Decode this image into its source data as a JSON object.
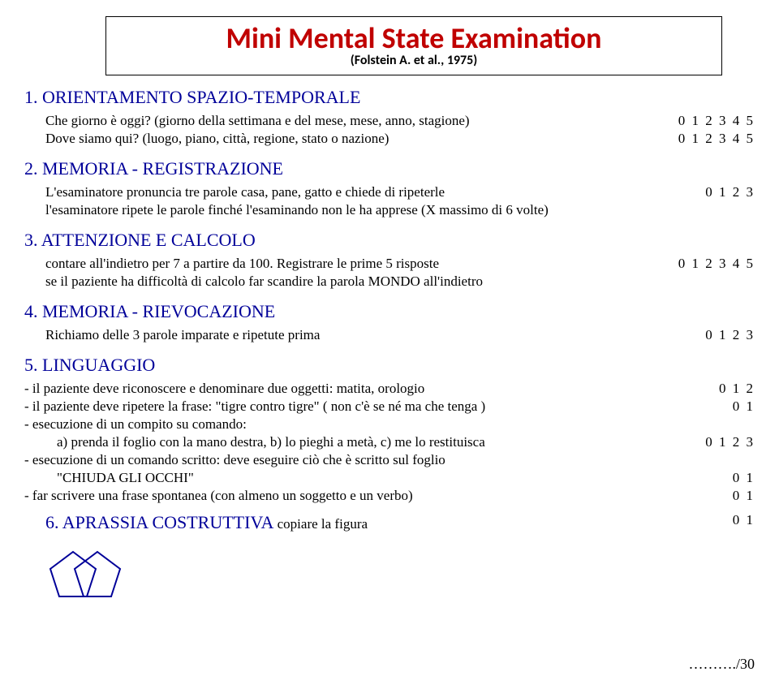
{
  "title": {
    "main": "Mini Mental State Examination",
    "sub": "(Folstein A. et al., 1975)",
    "main_color": "#c00000",
    "main_fontsize": 36,
    "sub_fontsize": 16
  },
  "heading_color": "#000099",
  "body_fontsize": 17,
  "sections": {
    "s1": {
      "heading": "1. ORIENTAMENTO SPAZIO-TEMPORALE"
    },
    "s1a": {
      "text": "Che giorno è oggi? (giorno della settimana e del mese, mese, anno, stagione)",
      "score": "0  1  2  3  4  5"
    },
    "s1b": {
      "text": "Dove siamo qui? (luogo, piano, città, regione, stato o nazione)",
      "score": "0  1  2  3  4  5"
    },
    "s2": {
      "heading": "2. MEMORIA - REGISTRAZIONE"
    },
    "s2a": {
      "text": "L'esaminatore pronuncia tre parole casa, pane, gatto e chiede di ripeterle",
      "score": "0  1  2  3"
    },
    "s2b": {
      "text": "l'esaminatore ripete le parole finché l'esaminando non le ha apprese (X massimo di 6 volte)",
      "score": ""
    },
    "s3": {
      "heading": "3. ATTENZIONE E CALCOLO"
    },
    "s3a": {
      "text": "contare all'indietro per 7 a partire da 100. Registrare le prime 5 risposte",
      "score": "0  1  2  3  4  5"
    },
    "s3b": {
      "text": "se il paziente ha difficoltà di calcolo far scandire la parola MONDO all'indietro",
      "score": ""
    },
    "s4": {
      "heading": "4. MEMORIA - RIEVOCAZIONE"
    },
    "s4a": {
      "text": "Richiamo delle 3 parole imparate e ripetute prima",
      "score": "0  1  2  3"
    },
    "s5": {
      "heading": "5. LINGUAGGIO"
    },
    "s5a": {
      "text": "- il paziente deve riconoscere e denominare due oggetti: matita, orologio",
      "score": "0  1  2"
    },
    "s5b": {
      "text": "- il paziente deve ripetere la frase: \"tigre contro tigre\" ( non c'è se né ma che tenga )",
      "score": "0  1"
    },
    "s5c": {
      "text": "- esecuzione di un compito su comando:",
      "score": ""
    },
    "s5d": {
      "text": "a) prenda il foglio con la mano destra, b) lo pieghi a metà, c) me lo restituisca",
      "score": "0  1  2  3"
    },
    "s5e": {
      "text": "- esecuzione di un comando scritto: deve eseguire ciò che è scritto sul foglio",
      "score": ""
    },
    "s5f": {
      "text": "\"CHIUDA GLI OCCHI\"",
      "score": "0  1"
    },
    "s5g": {
      "text": "- far scrivere una frase spontanea (con almeno un soggetto e un verbo)",
      "score": "0  1"
    },
    "s6_heading": "6. APRASSIA COSTRUTTIVA",
    "s6_body": "  copiare la figura",
    "s6_score": "0  1"
  },
  "total": "………./30",
  "pentagon": {
    "stroke": "#000099",
    "stroke_width": 2,
    "p1": "30,5 58,26 47,60 13,60 2,26",
    "p2": "60,5 88,26 77,60 43,60 32,26",
    "width": 92,
    "height": 68
  }
}
